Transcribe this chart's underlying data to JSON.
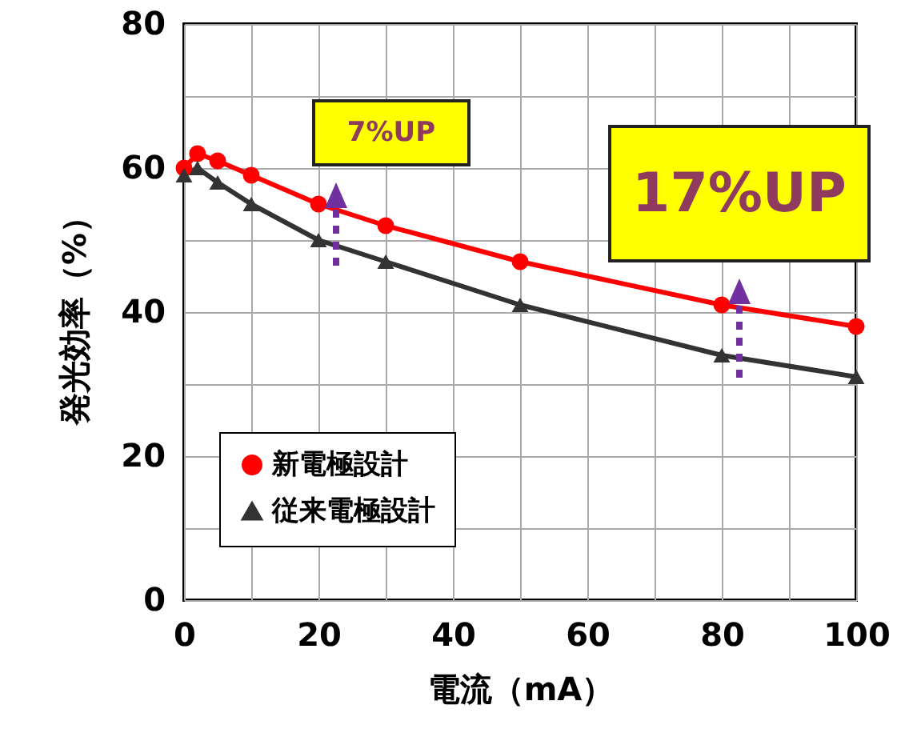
{
  "chart_data": {
    "type": "line",
    "xlabel": "電流（mA）",
    "ylabel": "発光効率（%）",
    "x": [
      0,
      2,
      5,
      10,
      20,
      30,
      50,
      80,
      100
    ],
    "series": [
      {
        "name": "新電極設計",
        "color": "#ff0000",
        "marker": "circle",
        "values": [
          60,
          62,
          61,
          59,
          55,
          52,
          47,
          41,
          38
        ]
      },
      {
        "name": "従来電極設計",
        "color": "#333333",
        "marker": "triangle",
        "values": [
          59,
          60,
          58,
          55,
          50,
          47,
          41,
          34,
          31
        ]
      }
    ],
    "xlim": [
      0,
      100
    ],
    "ylim": [
      0,
      80
    ],
    "xticks": [
      0,
      {
        "value": 10,
        "label": null
      },
      20,
      {
        "value": 30,
        "label": null
      },
      40,
      {
        "value": 50,
        "label": null
      },
      60,
      {
        "value": 70,
        "label": null
      },
      80,
      {
        "value": 90,
        "label": null
      },
      100
    ],
    "yticks": [
      0,
      {
        "value": 10,
        "label": null
      },
      20,
      {
        "value": 30,
        "label": null
      },
      40,
      {
        "value": 50,
        "label": null
      },
      60,
      {
        "value": 70,
        "label": null
      },
      80
    ],
    "grid": true,
    "legend": "bottom left",
    "line_style": "solid",
    "annotations": [
      "7%UP",
      "17%UP"
    ]
  }
}
